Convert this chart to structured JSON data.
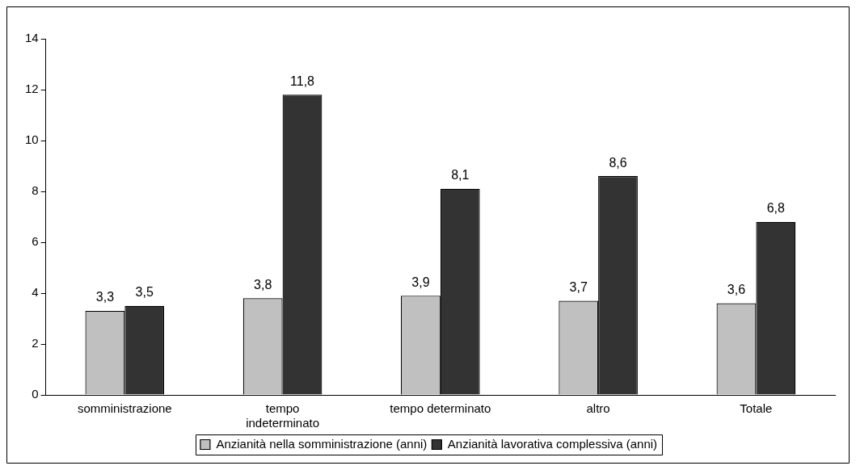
{
  "chart_data": {
    "type": "bar",
    "categories": [
      "somministrazione",
      "tempo indeterminato",
      "tempo determinato",
      "altro",
      "Totale"
    ],
    "series": [
      {
        "name": "Anzianità nella somministrazione (anni)",
        "color": "#c0c0c0",
        "values": [
          3.3,
          3.8,
          3.9,
          3.7,
          3.6
        ],
        "value_labels": [
          "3,3",
          "3,8",
          "3,9",
          "3,7",
          "3,6"
        ]
      },
      {
        "name": "Anzianità lavorativa complessiva (anni)",
        "color": "#333333",
        "values": [
          3.5,
          11.8,
          8.1,
          8.6,
          6.8
        ],
        "value_labels": [
          "3,5",
          "11,8",
          "8,1",
          "8,6",
          "6,8"
        ]
      }
    ],
    "ylim": [
      0,
      14
    ],
    "yticks": [
      0,
      2,
      4,
      6,
      8,
      10,
      12,
      14
    ],
    "grid": false,
    "legend": "bottom"
  }
}
